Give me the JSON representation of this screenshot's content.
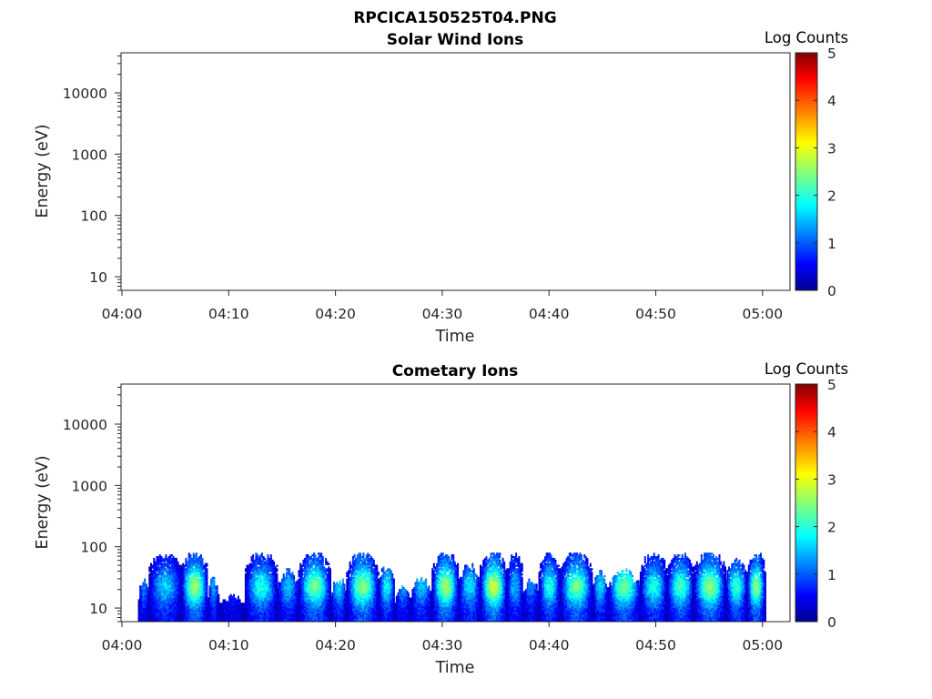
{
  "figure": {
    "title": "RPCICA150525T04.PNG"
  },
  "colormap": {
    "name": "jet",
    "stops": [
      "#00008f",
      "#0000ff",
      "#0080ff",
      "#00ffff",
      "#80ff80",
      "#ffff00",
      "#ff8000",
      "#ff0000",
      "#800000"
    ]
  },
  "chart_data": [
    {
      "type": "heatmap",
      "title": "Solar Wind Ions",
      "xlabel": "Time",
      "ylabel": "Energy (eV)",
      "x_ticks": [
        "04:00",
        "04:10",
        "04:20",
        "04:30",
        "04:40",
        "04:50",
        "05:00"
      ],
      "y_ticks": [
        "10",
        "100",
        "1000",
        "10000"
      ],
      "y_scale": "log",
      "ylim_eV": [
        6,
        45000
      ],
      "colorbar": {
        "label": "Log Counts",
        "ticks": [
          "0",
          "1",
          "2",
          "3",
          "4",
          "5"
        ],
        "range": [
          0,
          5
        ]
      },
      "data": []
    },
    {
      "type": "heatmap",
      "title": "Cometary Ions",
      "xlabel": "Time",
      "ylabel": "Energy (eV)",
      "x_ticks": [
        "04:00",
        "04:10",
        "04:20",
        "04:30",
        "04:40",
        "04:50",
        "05:00"
      ],
      "y_ticks": [
        "10",
        "100",
        "1000",
        "10000"
      ],
      "y_scale": "log",
      "ylim_eV": [
        6,
        45000
      ],
      "colorbar": {
        "label": "Log Counts",
        "ticks": [
          "0",
          "1",
          "2",
          "3",
          "4",
          "5"
        ],
        "range": [
          0,
          5
        ]
      },
      "data_description": "Log counts per time/energy bin; signal confined to ~6-80 eV, 04:01-05:00",
      "time_range_min": [
        1.5,
        60.2
      ],
      "energy_range_eV": [
        6,
        80
      ],
      "bursts": [
        {
          "t_start": 1.5,
          "t_end": 2.5,
          "emax": 30,
          "peak": 0.9
        },
        {
          "t_start": 2.5,
          "t_end": 5.5,
          "emax": 80,
          "peak": 1.3
        },
        {
          "t_start": 5.5,
          "t_end": 8.0,
          "emax": 80,
          "peak": 2.2
        },
        {
          "t_start": 8.0,
          "t_end": 9.0,
          "emax": 30,
          "peak": 1.1
        },
        {
          "t_start": 9.0,
          "t_end": 11.5,
          "emax": 16,
          "peak": 0.6
        },
        {
          "t_start": 11.5,
          "t_end": 14.5,
          "emax": 80,
          "peak": 1.6
        },
        {
          "t_start": 14.5,
          "t_end": 16.5,
          "emax": 40,
          "peak": 1.2
        },
        {
          "t_start": 16.5,
          "t_end": 19.5,
          "emax": 80,
          "peak": 2.0
        },
        {
          "t_start": 19.5,
          "t_end": 21.0,
          "emax": 30,
          "peak": 1.3
        },
        {
          "t_start": 21.0,
          "t_end": 24.0,
          "emax": 80,
          "peak": 2.1
        },
        {
          "t_start": 24.0,
          "t_end": 25.5,
          "emax": 50,
          "peak": 1.5
        },
        {
          "t_start": 25.5,
          "t_end": 27.0,
          "emax": 25,
          "peak": 1.0
        },
        {
          "t_start": 27.0,
          "t_end": 29.0,
          "emax": 30,
          "peak": 1.2
        },
        {
          "t_start": 29.0,
          "t_end": 31.5,
          "emax": 80,
          "peak": 2.2
        },
        {
          "t_start": 31.5,
          "t_end": 33.5,
          "emax": 50,
          "peak": 1.4
        },
        {
          "t_start": 33.5,
          "t_end": 36.0,
          "emax": 80,
          "peak": 2.4
        },
        {
          "t_start": 36.0,
          "t_end": 37.5,
          "emax": 80,
          "peak": 1.2
        },
        {
          "t_start": 37.5,
          "t_end": 39.0,
          "emax": 30,
          "peak": 0.9
        },
        {
          "t_start": 39.0,
          "t_end": 41.0,
          "emax": 80,
          "peak": 1.6
        },
        {
          "t_start": 41.0,
          "t_end": 44.0,
          "emax": 80,
          "peak": 2.0
        },
        {
          "t_start": 44.0,
          "t_end": 45.5,
          "emax": 40,
          "peak": 1.3
        },
        {
          "t_start": 45.5,
          "t_end": 48.5,
          "emax": 40,
          "peak": 2.0
        },
        {
          "t_start": 48.5,
          "t_end": 51.0,
          "emax": 80,
          "peak": 1.6
        },
        {
          "t_start": 51.0,
          "t_end": 53.5,
          "emax": 80,
          "peak": 1.8
        },
        {
          "t_start": 53.5,
          "t_end": 56.5,
          "emax": 80,
          "peak": 2.1
        },
        {
          "t_start": 56.5,
          "t_end": 58.5,
          "emax": 60,
          "peak": 1.7
        },
        {
          "t_start": 58.5,
          "t_end": 60.2,
          "emax": 80,
          "peak": 2.1
        }
      ]
    }
  ]
}
